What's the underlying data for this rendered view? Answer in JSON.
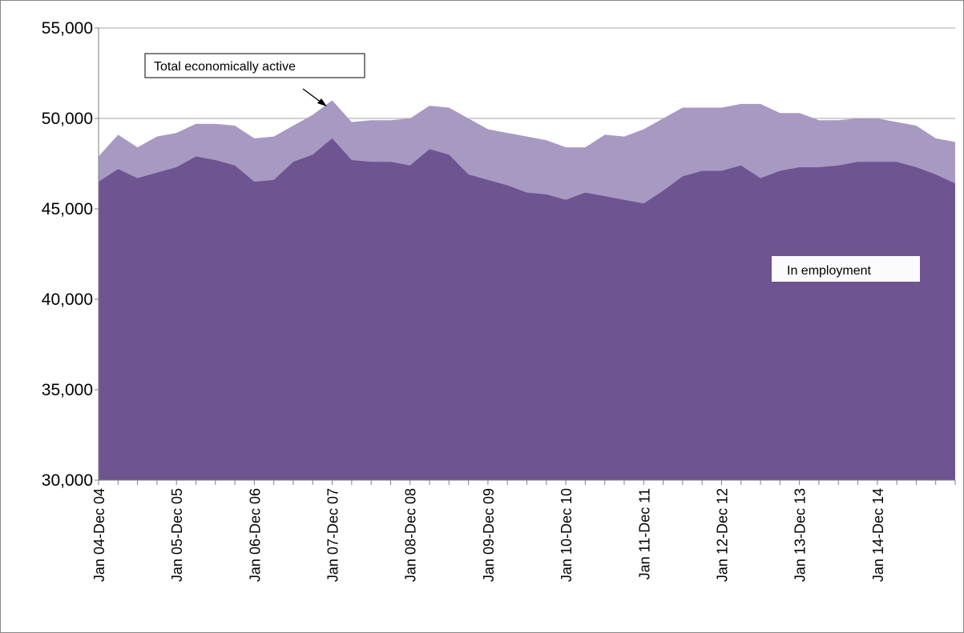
{
  "chart_data": {
    "type": "area",
    "ylim": [
      30000,
      55000
    ],
    "y_ticks": [
      {
        "value": 30000,
        "label": "30,000"
      },
      {
        "value": 35000,
        "label": "35,000"
      },
      {
        "value": 40000,
        "label": "40,000"
      },
      {
        "value": 45000,
        "label": "45,000"
      },
      {
        "value": 50000,
        "label": "50,000"
      },
      {
        "value": 55000,
        "label": "55,000"
      }
    ],
    "x_ticks": [
      "Jan 04-Dec 04",
      "Jan 05-Dec 05",
      "Jan 06-Dec 06",
      "Jan 07-Dec 07",
      "Jan 08-Dec 08",
      "Jan 09-Dec 09",
      "Jan 10-Dec 10",
      "Jan 11-Dec 11",
      "Jan 12-Dec 12",
      "Jan 13-Dec 13",
      "Jan 14-Dec 14"
    ],
    "periods_per_tick": 4,
    "grid": {
      "horizontal": true,
      "vertical": false
    },
    "series": [
      {
        "name": "Total economically active",
        "color": "#a899c2",
        "values": [
          47900,
          49100,
          48400,
          49000,
          49200,
          49700,
          49700,
          49600,
          48900,
          49000,
          49600,
          50200,
          51000,
          49800,
          49900,
          49900,
          50000,
          50700,
          50600,
          50000,
          49400,
          49200,
          49000,
          48800,
          48400,
          48400,
          49100,
          49000,
          49400,
          50000,
          50600,
          50600,
          50600,
          50800,
          50800,
          50300,
          50300,
          49900,
          49900,
          50000,
          50000,
          49800,
          49600,
          48900,
          48700
        ]
      },
      {
        "name": "In employment",
        "color": "#6e5591",
        "values": [
          46500,
          47200,
          46700,
          47000,
          47300,
          47900,
          47700,
          47400,
          46500,
          46600,
          47600,
          48000,
          48900,
          47700,
          47600,
          47600,
          47400,
          48300,
          48000,
          46900,
          46600,
          46300,
          45900,
          45800,
          45500,
          45900,
          45700,
          45500,
          45300,
          46000,
          46800,
          47100,
          47100,
          47400,
          46700,
          47100,
          47300,
          47300,
          47400,
          47600,
          47600,
          47600,
          47300,
          46900,
          46400
        ]
      }
    ],
    "annotations": [
      {
        "id": "total",
        "text": "Total economically active"
      },
      {
        "id": "employment",
        "text": "In employment"
      }
    ]
  }
}
